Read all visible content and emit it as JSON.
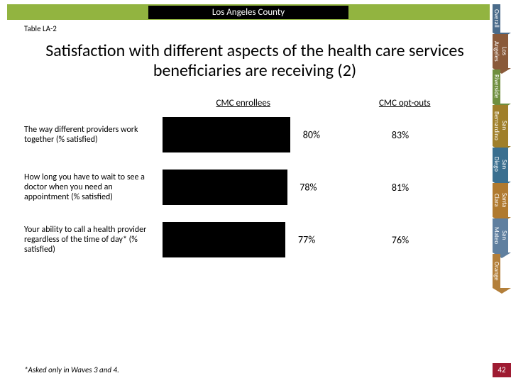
{
  "header": {
    "county": "Los Angeles County"
  },
  "table_id": "Table LA-2",
  "title": "Satisfaction with different aspects of the health care services beneficiaries are receiving (2)",
  "side_tabs": [
    {
      "label": "Overall",
      "color": "#4a6b8a"
    },
    {
      "label": "Los Angeles",
      "color": "#8a5a3a"
    },
    {
      "label": "Riverside",
      "color": "#6f8f3f"
    },
    {
      "label": "San Bernardino",
      "color": "#9f7f2a"
    },
    {
      "label": "San Diego",
      "color": "#3a6f8f"
    },
    {
      "label": "Santa Clara",
      "color": "#b07a2f"
    },
    {
      "label": "San Mateo",
      "color": "#5f7f9f"
    },
    {
      "label": "Orange",
      "color": "#b37f3a"
    }
  ],
  "chart": {
    "type": "bar",
    "columns": {
      "enrollees": "CMC enrollees",
      "optouts": "CMC opt-outs"
    },
    "xlim": [
      0,
      100
    ],
    "bar_color": "#000000",
    "background_color": "#ffffff",
    "label_fontsize": 12,
    "value_fontsize": 14,
    "rows": [
      {
        "label": "The way different providers work together (% satisfied)",
        "enrollee_value": 80,
        "optout_value": 83
      },
      {
        "label": "How long you have to wait to see a doctor when you need an appointment (% satisfied)",
        "enrollee_value": 78,
        "optout_value": 81
      },
      {
        "label": "Your ability to call a health provider regardless of the time of day* (% satisfied)",
        "enrollee_value": 77,
        "optout_value": 76
      }
    ]
  },
  "footnote": "*Asked only in Waves 3 and 4.",
  "page_number": "42",
  "colors": {
    "accent_green": "#92b440",
    "accent_red": "#9e1b32",
    "text": "#000000"
  }
}
